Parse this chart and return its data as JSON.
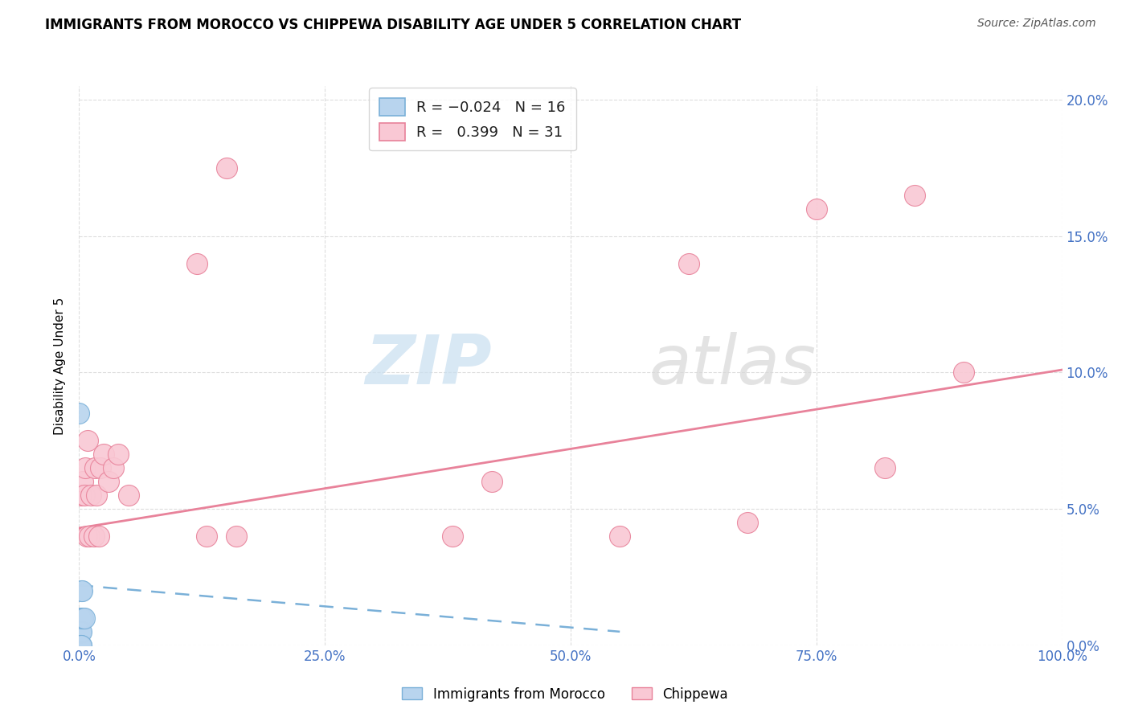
{
  "title": "IMMIGRANTS FROM MOROCCO VS CHIPPEWA DISABILITY AGE UNDER 5 CORRELATION CHART",
  "source": "Source: ZipAtlas.com",
  "ylabel_label": "Disability Age Under 5",
  "watermark_zip": "ZIP",
  "watermark_atlas": "atlas",
  "morocco_color": "#b8d4ee",
  "morocco_edge": "#7ab0d8",
  "chippewa_color": "#f9c8d4",
  "chippewa_edge": "#e8829a",
  "morocco_R": -0.024,
  "morocco_N": 16,
  "chippewa_R": 0.399,
  "chippewa_N": 31,
  "morocco_points_x": [
    0.0,
    0.001,
    0.001,
    0.001,
    0.001,
    0.002,
    0.002,
    0.002,
    0.002,
    0.003,
    0.003,
    0.004,
    0.005,
    0.001,
    0.001,
    0.002
  ],
  "morocco_points_y": [
    0.085,
    0.0,
    0.005,
    0.01,
    0.0,
    0.0,
    0.01,
    0.02,
    0.005,
    0.01,
    0.02,
    0.01,
    0.01,
    0.0,
    0.0,
    0.0
  ],
  "chippewa_points_x": [
    0.002,
    0.004,
    0.005,
    0.006,
    0.008,
    0.009,
    0.01,
    0.012,
    0.015,
    0.016,
    0.018,
    0.02,
    0.022,
    0.025,
    0.03,
    0.035,
    0.04,
    0.05,
    0.12,
    0.13,
    0.15,
    0.16,
    0.38,
    0.42,
    0.55,
    0.62,
    0.68,
    0.75,
    0.82,
    0.85,
    0.9
  ],
  "chippewa_points_y": [
    0.055,
    0.06,
    0.055,
    0.065,
    0.04,
    0.075,
    0.04,
    0.055,
    0.04,
    0.065,
    0.055,
    0.04,
    0.065,
    0.07,
    0.06,
    0.065,
    0.07,
    0.055,
    0.14,
    0.04,
    0.175,
    0.04,
    0.04,
    0.06,
    0.04,
    0.14,
    0.045,
    0.16,
    0.065,
    0.165,
    0.1
  ],
  "xmin": 0.0,
  "xmax": 1.0,
  "ymin": 0.0,
  "ymax": 0.205,
  "chippewa_trend_x": [
    0.0,
    1.0
  ],
  "chippewa_trend_y": [
    0.043,
    0.101
  ],
  "morocco_trend_x": [
    0.0,
    0.55
  ],
  "morocco_trend_y": [
    0.022,
    0.005
  ],
  "x_ticks": [
    0.0,
    0.25,
    0.5,
    0.75,
    1.0
  ],
  "x_tick_labels": [
    "0.0%",
    "25.0%",
    "50.0%",
    "75.0%",
    "100.0%"
  ],
  "y_ticks": [
    0.0,
    0.05,
    0.1,
    0.15,
    0.2
  ],
  "y_tick_labels": [
    "0.0%",
    "5.0%",
    "10.0%",
    "15.0%",
    "20.0%"
  ],
  "tick_color": "#4472c4",
  "grid_color": "#dddddd",
  "title_fontsize": 12,
  "source_fontsize": 10,
  "tick_fontsize": 12,
  "legend_fontsize": 12
}
